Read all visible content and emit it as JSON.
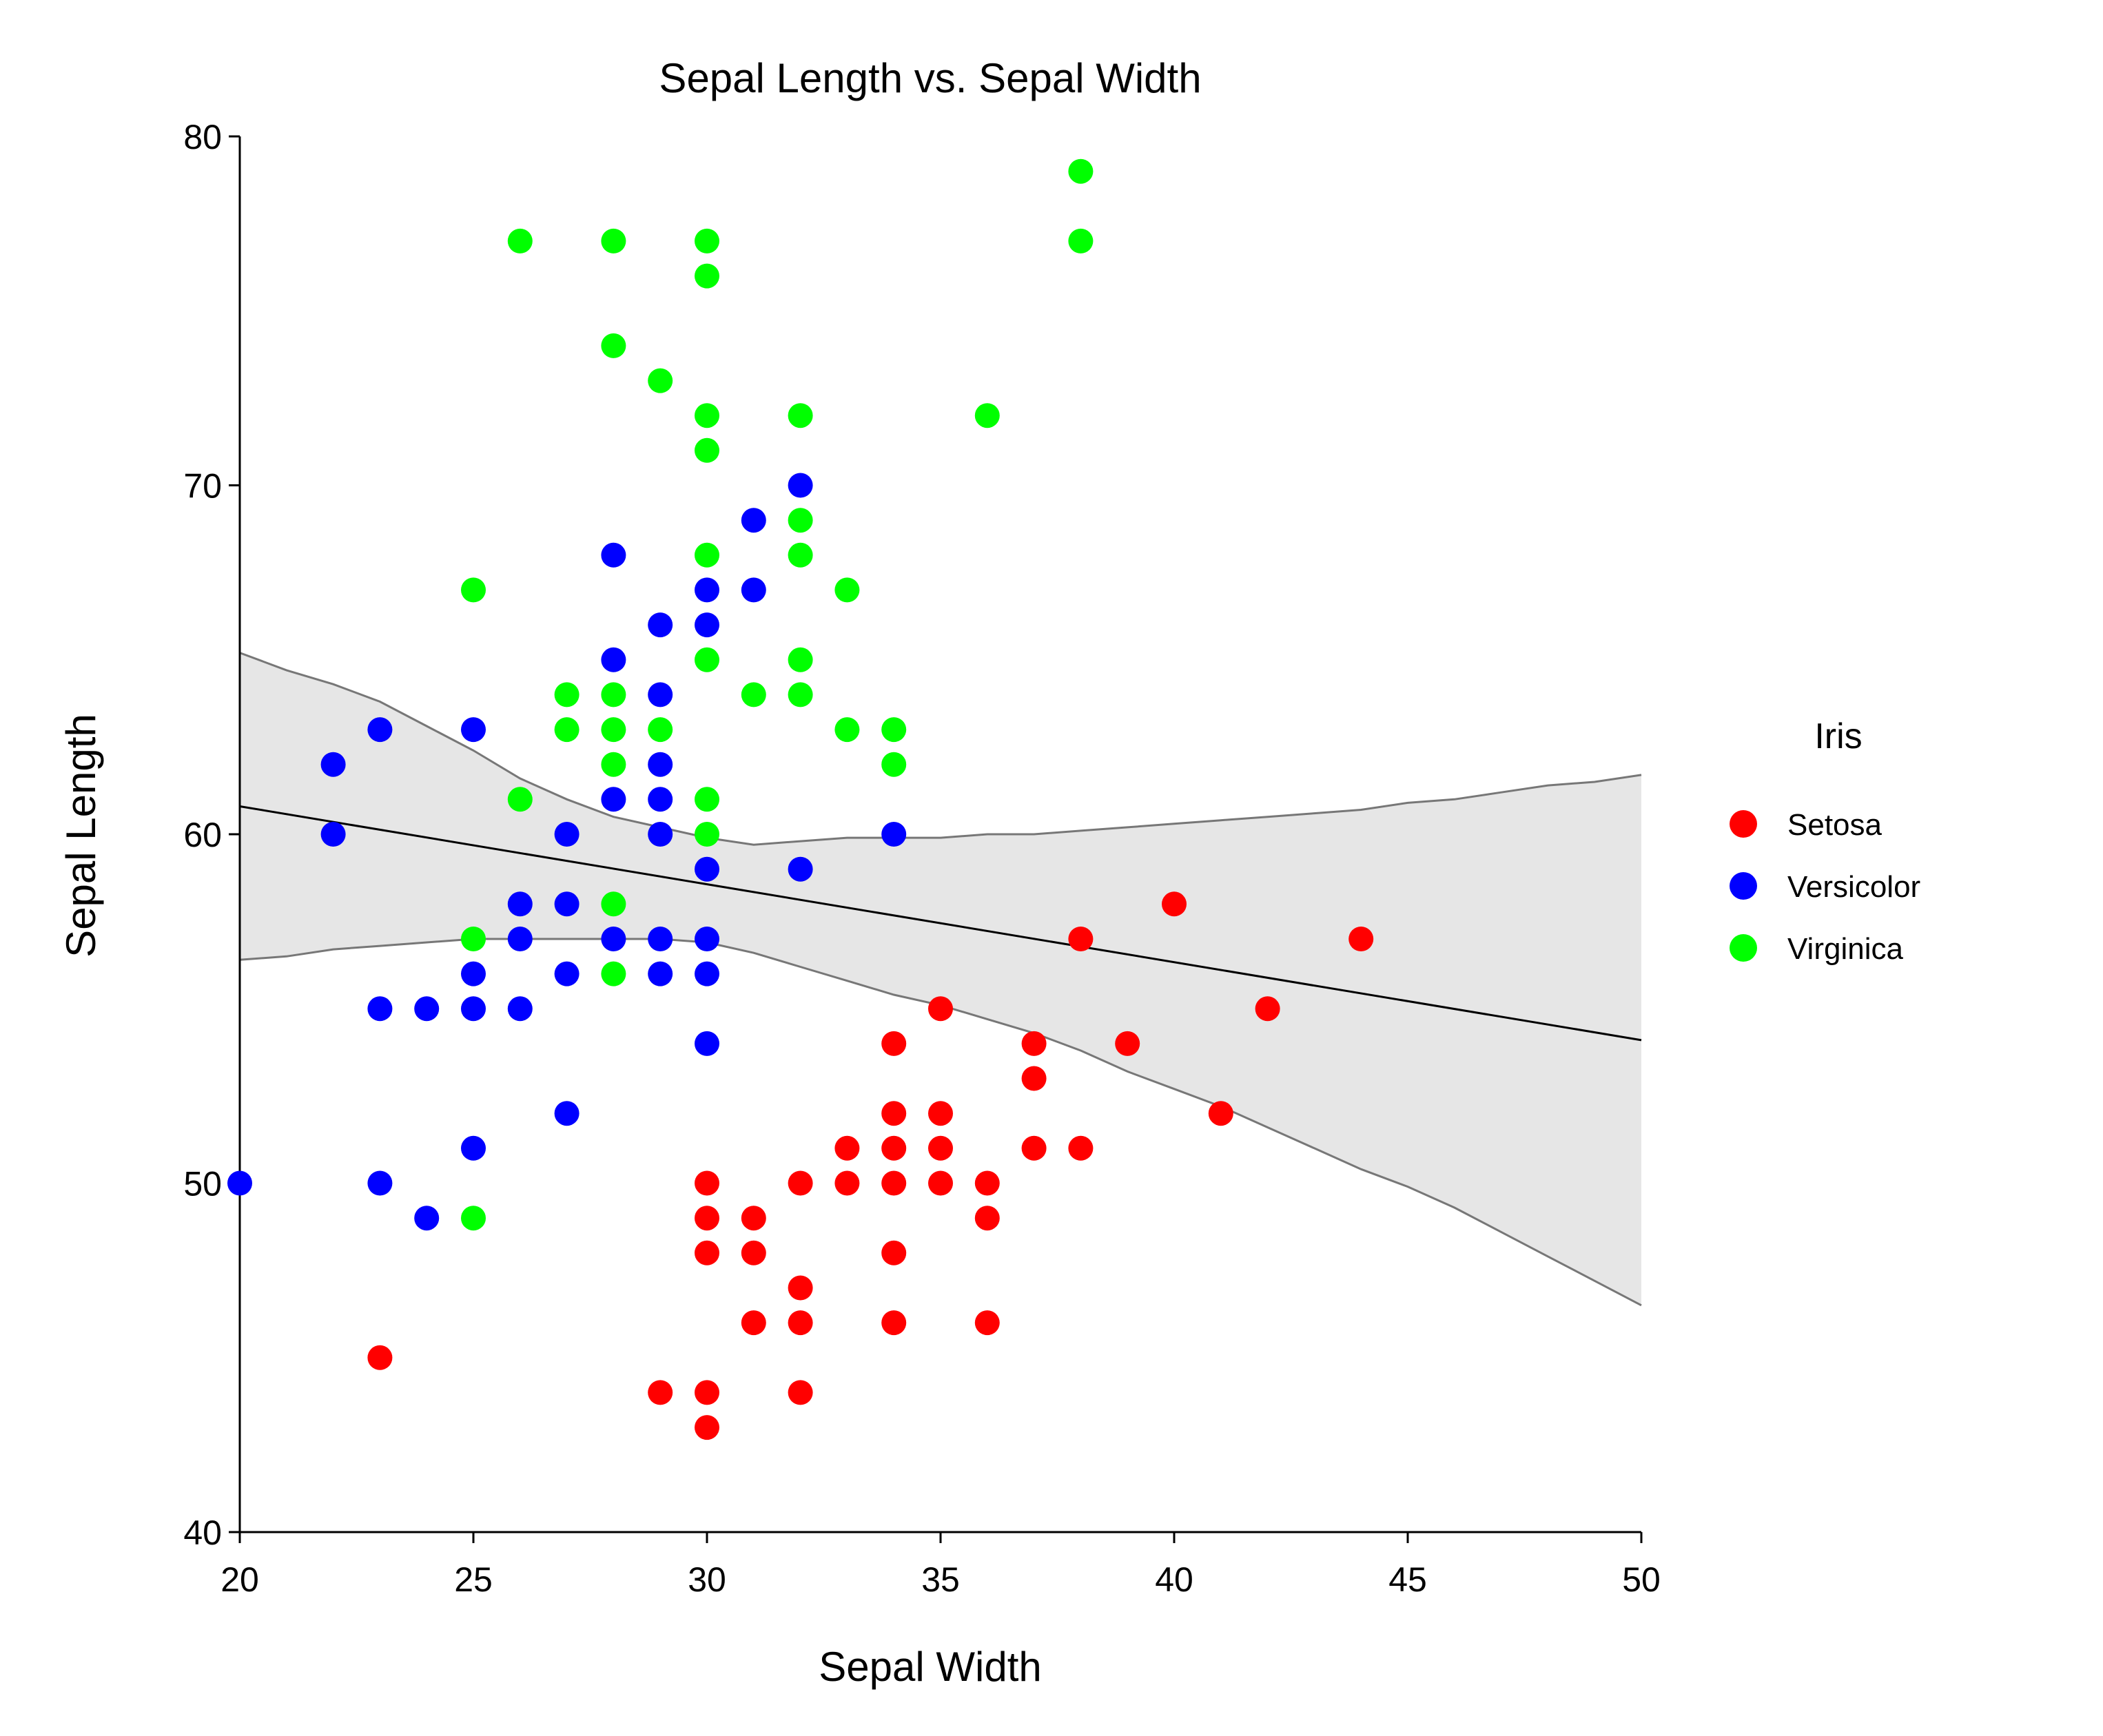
{
  "chart_data": {
    "type": "scatter",
    "title": "Sepal Length vs. Sepal Width",
    "xlabel": "Sepal Width",
    "ylabel": "Sepal Length",
    "xlim": [
      20,
      50
    ],
    "ylim": [
      40,
      80
    ],
    "xticks": [
      20,
      25,
      30,
      35,
      40,
      45,
      50
    ],
    "yticks": [
      40,
      50,
      60,
      70,
      80
    ],
    "grid": false,
    "legend": {
      "title": "Iris",
      "position": "right"
    },
    "series": [
      {
        "name": "Setosa",
        "color": "#ff0000",
        "points": [
          [
            23,
            45
          ],
          [
            29,
            44
          ],
          [
            30,
            44
          ],
          [
            30,
            43
          ],
          [
            30,
            50
          ],
          [
            30,
            49
          ],
          [
            30,
            48
          ],
          [
            31,
            49
          ],
          [
            31,
            48
          ],
          [
            31,
            46
          ],
          [
            32,
            50
          ],
          [
            32,
            47
          ],
          [
            32,
            46
          ],
          [
            32,
            44
          ],
          [
            33,
            51
          ],
          [
            33,
            50
          ],
          [
            34,
            54
          ],
          [
            34,
            52
          ],
          [
            34,
            51
          ],
          [
            34,
            50
          ],
          [
            34,
            48
          ],
          [
            34,
            46
          ],
          [
            35,
            55
          ],
          [
            35,
            52
          ],
          [
            35,
            51
          ],
          [
            35,
            50
          ],
          [
            36,
            50
          ],
          [
            36,
            49
          ],
          [
            36,
            46
          ],
          [
            37,
            54
          ],
          [
            37,
            53
          ],
          [
            37,
            51
          ],
          [
            38,
            57
          ],
          [
            38,
            51
          ],
          [
            39,
            54
          ],
          [
            40,
            58
          ],
          [
            41,
            52
          ],
          [
            42,
            55
          ],
          [
            44,
            57
          ]
        ]
      },
      {
        "name": "Versicolor",
        "color": "#0000ff",
        "points": [
          [
            20,
            50
          ],
          [
            22,
            62
          ],
          [
            22,
            60
          ],
          [
            23,
            63
          ],
          [
            23,
            55
          ],
          [
            23,
            50
          ],
          [
            24,
            55
          ],
          [
            24,
            49
          ],
          [
            25,
            63
          ],
          [
            25,
            56
          ],
          [
            25,
            55
          ],
          [
            25,
            51
          ],
          [
            26,
            58
          ],
          [
            26,
            57
          ],
          [
            26,
            55
          ],
          [
            27,
            60
          ],
          [
            27,
            58
          ],
          [
            27,
            56
          ],
          [
            27,
            52
          ],
          [
            28,
            68
          ],
          [
            28,
            65
          ],
          [
            28,
            61
          ],
          [
            28,
            57
          ],
          [
            29,
            66
          ],
          [
            29,
            64
          ],
          [
            29,
            62
          ],
          [
            29,
            61
          ],
          [
            29,
            60
          ],
          [
            29,
            57
          ],
          [
            29,
            56
          ],
          [
            30,
            67
          ],
          [
            30,
            66
          ],
          [
            30,
            59
          ],
          [
            30,
            57
          ],
          [
            30,
            56
          ],
          [
            30,
            54
          ],
          [
            31,
            69
          ],
          [
            31,
            67
          ],
          [
            32,
            70
          ],
          [
            32,
            59
          ],
          [
            34,
            60
          ]
        ]
      },
      {
        "name": "Virginica",
        "color": "#00ff00",
        "points": [
          [
            25,
            67
          ],
          [
            25,
            57
          ],
          [
            25,
            49
          ],
          [
            26,
            77
          ],
          [
            26,
            61
          ],
          [
            27,
            64
          ],
          [
            27,
            63
          ],
          [
            28,
            77
          ],
          [
            28,
            74
          ],
          [
            28,
            64
          ],
          [
            28,
            63
          ],
          [
            28,
            62
          ],
          [
            28,
            58
          ],
          [
            28,
            56
          ],
          [
            29,
            73
          ],
          [
            29,
            63
          ],
          [
            30,
            77
          ],
          [
            30,
            76
          ],
          [
            30,
            72
          ],
          [
            30,
            71
          ],
          [
            30,
            68
          ],
          [
            30,
            65
          ],
          [
            30,
            61
          ],
          [
            30,
            60
          ],
          [
            31,
            64
          ],
          [
            32,
            72
          ],
          [
            32,
            69
          ],
          [
            32,
            68
          ],
          [
            32,
            65
          ],
          [
            32,
            64
          ],
          [
            33,
            67
          ],
          [
            33,
            63
          ],
          [
            34,
            63
          ],
          [
            34,
            62
          ],
          [
            36,
            72
          ],
          [
            38,
            79
          ],
          [
            38,
            77
          ]
        ]
      }
    ],
    "regression": {
      "line": [
        [
          20,
          60.8
        ],
        [
          50,
          54.1
        ]
      ],
      "band_upper": [
        [
          20,
          65.2
        ],
        [
          21,
          64.7
        ],
        [
          22,
          64.3
        ],
        [
          23,
          63.8
        ],
        [
          24,
          63.1
        ],
        [
          25,
          62.4
        ],
        [
          26,
          61.6
        ],
        [
          27,
          61.0
        ],
        [
          28,
          60.5
        ],
        [
          29,
          60.2
        ],
        [
          30,
          59.9
        ],
        [
          31,
          59.7
        ],
        [
          32,
          59.8
        ],
        [
          33,
          59.9
        ],
        [
          34,
          59.9
        ],
        [
          35,
          59.9
        ],
        [
          36,
          60.0
        ],
        [
          37,
          60.0
        ],
        [
          38,
          60.1
        ],
        [
          39,
          60.2
        ],
        [
          40,
          60.3
        ],
        [
          41,
          60.4
        ],
        [
          42,
          60.5
        ],
        [
          43,
          60.6
        ],
        [
          44,
          60.7
        ],
        [
          45,
          60.9
        ],
        [
          46,
          61.0
        ],
        [
          47,
          61.2
        ],
        [
          48,
          61.4
        ],
        [
          49,
          61.5
        ],
        [
          50,
          61.7
        ]
      ],
      "band_lower": [
        [
          20,
          56.4
        ],
        [
          21,
          56.5
        ],
        [
          22,
          56.7
        ],
        [
          23,
          56.8
        ],
        [
          24,
          56.9
        ],
        [
          25,
          57.0
        ],
        [
          26,
          57.0
        ],
        [
          27,
          57.0
        ],
        [
          28,
          57.0
        ],
        [
          29,
          57.0
        ],
        [
          30,
          56.9
        ],
        [
          31,
          56.6
        ],
        [
          32,
          56.2
        ],
        [
          33,
          55.8
        ],
        [
          34,
          55.4
        ],
        [
          35,
          55.1
        ],
        [
          36,
          54.7
        ],
        [
          37,
          54.3
        ],
        [
          38,
          53.8
        ],
        [
          39,
          53.2
        ],
        [
          40,
          52.7
        ],
        [
          41,
          52.2
        ],
        [
          42,
          51.6
        ],
        [
          43,
          51.0
        ],
        [
          44,
          50.4
        ],
        [
          45,
          49.9
        ],
        [
          46,
          49.3
        ],
        [
          47,
          48.6
        ],
        [
          48,
          47.9
        ],
        [
          49,
          47.2
        ],
        [
          50,
          46.5
        ]
      ],
      "band_color": "#e6e6e6",
      "band_edge_color": "#777777"
    }
  }
}
